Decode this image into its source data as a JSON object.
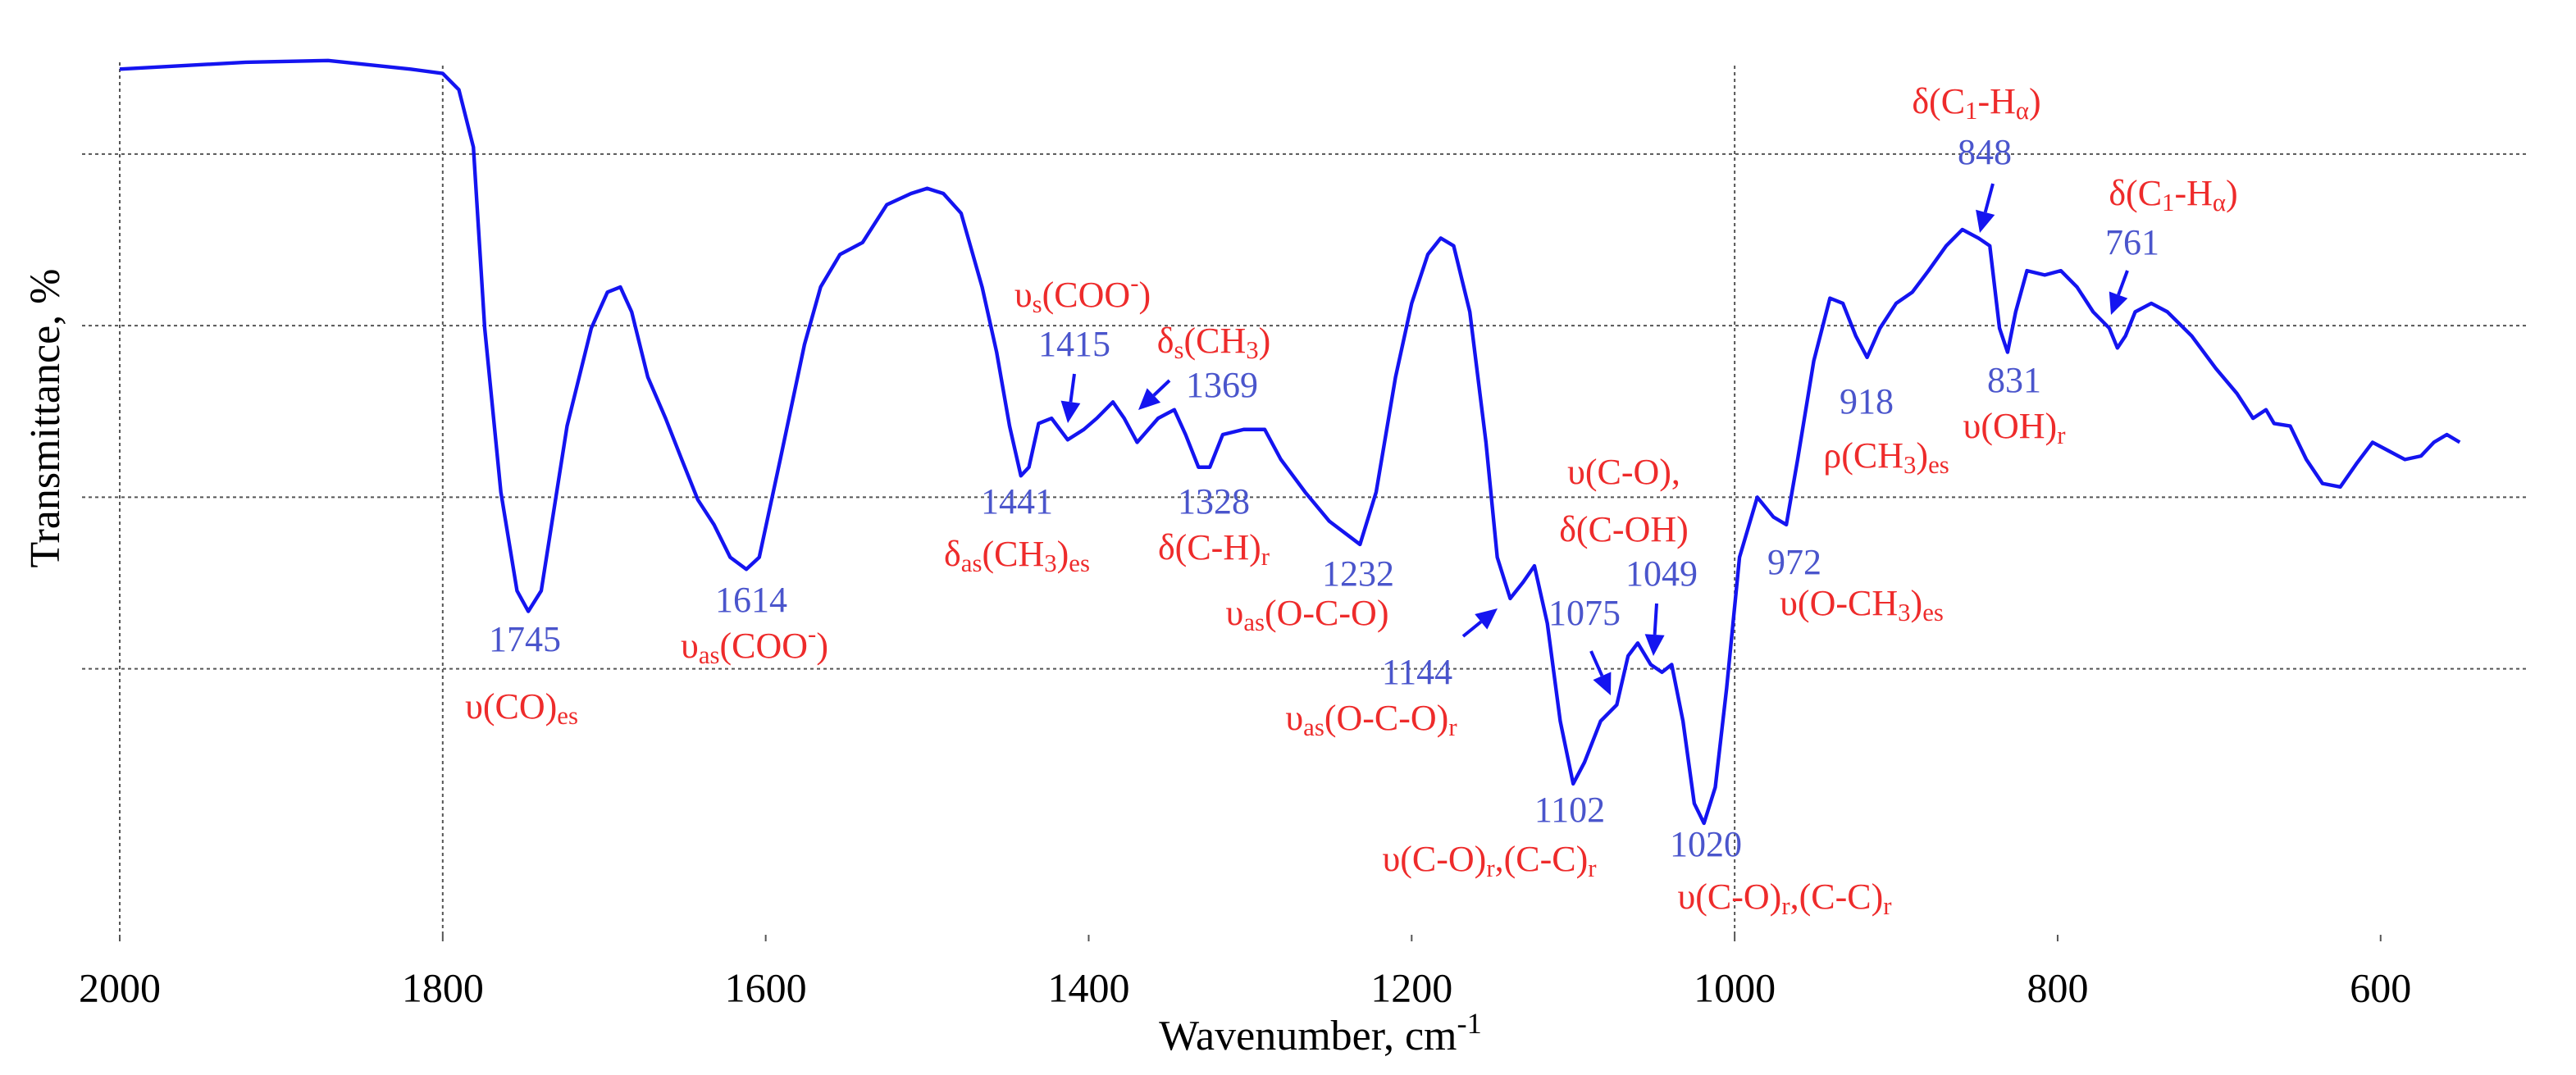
{
  "chart_data": {
    "type": "line",
    "ylabel": "Transmittance, %",
    "xlabel": [
      "Wavenumber, cm",
      {
        "sup": "-1"
      }
    ],
    "xlim": [
      2000,
      510
    ],
    "ylim": [
      -11,
      97
    ],
    "xticks": [
      2000,
      1800,
      1600,
      1400,
      1200,
      1000,
      800,
      600
    ],
    "xgrid": [
      1800,
      1000
    ],
    "ygrid": [
      20,
      40,
      60,
      80
    ],
    "series": [
      {
        "color": "#1414f0",
        "x": [
          2000,
          1922,
          1871,
          1820,
          1800,
          1790,
          1781,
          1774,
          1764,
          1754,
          1747,
          1739,
          1723,
          1708,
          1698,
          1690,
          1683,
          1673,
          1662,
          1652,
          1642,
          1632,
          1622,
          1612,
          1604,
          1591,
          1576,
          1566,
          1554,
          1540,
          1525,
          1510,
          1500,
          1490,
          1479,
          1466,
          1457,
          1449,
          1442,
          1437,
          1431,
          1423,
          1413,
          1403,
          1395,
          1385,
          1378,
          1370,
          1357,
          1347,
          1340,
          1332,
          1325,
          1317,
          1304,
          1291,
          1281,
          1266,
          1251,
          1232,
          1222,
          1210,
          1200,
          1190,
          1182,
          1174,
          1164,
          1154,
          1147,
          1139,
          1131,
          1124,
          1116,
          1108,
          1100,
          1093,
          1083,
          1073,
          1066,
          1060,
          1052,
          1045,
          1039,
          1032,
          1025,
          1019,
          1012,
          1005,
          997,
          986,
          976,
          968,
          961,
          951,
          941,
          933,
          925,
          918,
          910,
          900,
          890,
          880,
          869,
          859,
          849,
          842,
          836,
          831,
          826,
          819,
          808,
          798,
          788,
          778,
          768,
          763,
          758,
          752,
          742,
          732,
          717,
          702,
          689,
          679,
          671,
          666,
          656,
          646,
          636,
          625,
          615,
          605,
          595,
          585,
          575,
          567,
          559,
          551
        ],
        "values": [
          89.9,
          90.7,
          90.9,
          89.9,
          89.4,
          87.5,
          80.8,
          59.7,
          40.6,
          29.1,
          26.7,
          29.1,
          48.3,
          59.7,
          63.9,
          64.5,
          61.6,
          54.0,
          49.2,
          44.4,
          39.7,
          36.8,
          33.0,
          31.6,
          33.0,
          44.4,
          57.8,
          64.5,
          68.3,
          69.7,
          74.1,
          75.4,
          76.0,
          75.4,
          73.1,
          64.5,
          56.9,
          48.3,
          42.5,
          43.5,
          48.6,
          49.2,
          46.7,
          47.9,
          49.2,
          51.1,
          49.2,
          46.4,
          49.2,
          50.2,
          47.3,
          43.5,
          43.5,
          47.3,
          47.9,
          47.9,
          44.4,
          40.6,
          37.2,
          34.5,
          40.6,
          54.0,
          62.6,
          68.3,
          70.2,
          69.3,
          61.6,
          46.4,
          33.0,
          28.2,
          30.1,
          32.0,
          25.3,
          13.9,
          6.6,
          9.1,
          13.9,
          15.8,
          21.5,
          23.0,
          20.5,
          19.6,
          20.5,
          13.9,
          4.3,
          2.0,
          6.2,
          17.7,
          33.0,
          40.0,
          37.7,
          36.8,
          44.4,
          55.9,
          63.2,
          62.6,
          58.8,
          56.3,
          59.7,
          62.6,
          63.9,
          66.4,
          69.3,
          71.2,
          70.2,
          69.3,
          59.7,
          56.9,
          61.6,
          66.4,
          65.9,
          66.4,
          64.5,
          61.6,
          59.7,
          57.4,
          58.8,
          61.6,
          62.6,
          61.6,
          58.8,
          55.0,
          52.1,
          49.2,
          50.2,
          48.6,
          48.3,
          44.4,
          41.6,
          41.2,
          43.9,
          46.4,
          45.4,
          44.4,
          44.8,
          46.4,
          47.3,
          46.4
        ]
      }
    ],
    "peak_color": "#4a55cc",
    "assignment_color": "#ee2b2b",
    "peaks": [
      1745,
      1614,
      1441,
      1415,
      1369,
      1328,
      1232,
      1144,
      1102,
      1075,
      1049,
      1020,
      972,
      918,
      848,
      831,
      761
    ],
    "assignments": [
      [
        "υ(CO)",
        {
          "sub": "es"
        }
      ],
      [
        "υ",
        {
          "sub": "as"
        },
        "(COO",
        {
          "sup": "-"
        },
        ")"
      ],
      [
        "υ",
        {
          "sub": "s"
        },
        "(COO",
        {
          "sup": "-"
        },
        ")"
      ],
      [
        "δ",
        {
          "sub": "s"
        },
        "(CH",
        {
          "sub": "3"
        },
        ")"
      ],
      [
        "δ",
        {
          "sub": "as"
        },
        "(CH",
        {
          "sub": "3"
        },
        ")",
        {
          "sub": "es"
        }
      ],
      [
        "δ(C-H)",
        {
          "sub": "r"
        }
      ],
      [
        "υ",
        {
          "sub": "as"
        },
        "(O-C-O)"
      ],
      [
        "υ",
        {
          "sub": "as"
        },
        "(O-C-O)",
        {
          "sub": "r"
        }
      ],
      [
        "υ(C-O)",
        {
          "sub": "r"
        },
        ",(C-C)",
        {
          "sub": "r"
        }
      ],
      [
        "υ(C-O),"
      ],
      [
        "δ(C-OH)"
      ],
      [
        "υ(C-O)",
        {
          "sub": "r"
        },
        ",(C-C)",
        {
          "sub": "r"
        }
      ],
      [
        "υ(O-CH",
        {
          "sub": "3"
        },
        ")",
        {
          "sub": "es"
        }
      ],
      [
        "ρ(CH",
        {
          "sub": "3"
        },
        ")",
        {
          "sub": "es"
        }
      ],
      [
        "υ(OH)",
        {
          "sub": "r"
        }
      ],
      [
        "δ(C",
        {
          "sub": "1"
        },
        "-H",
        {
          "sub": "α"
        },
        ")"
      ],
      [
        "δ(C",
        {
          "sub": "1"
        },
        "-H",
        {
          "sub": "α"
        },
        ")"
      ]
    ]
  }
}
